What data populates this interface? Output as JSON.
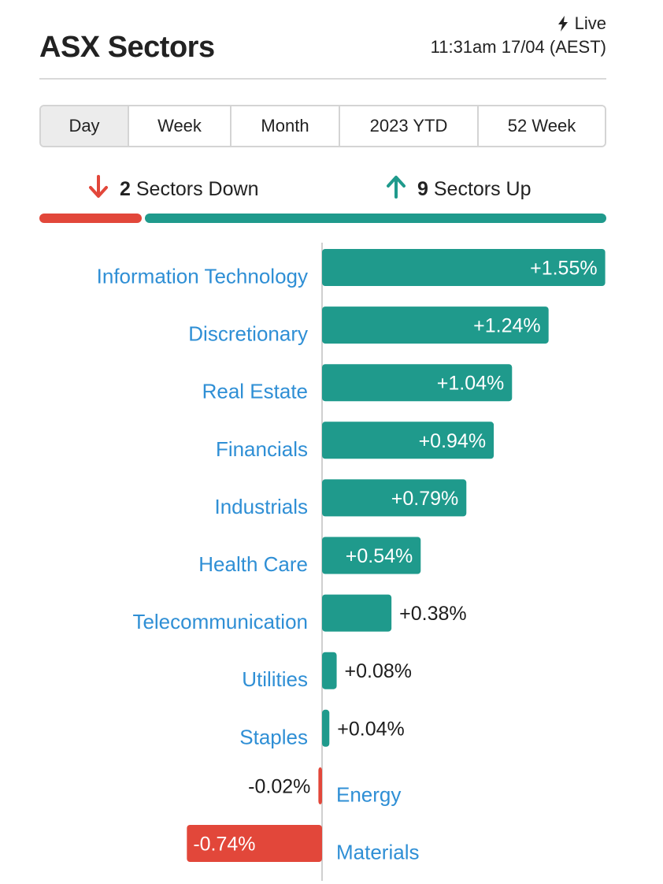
{
  "header": {
    "title": "ASX Sectors",
    "live_label": "Live",
    "timestamp": "11:31am 17/04 (AEST)"
  },
  "tabs": [
    {
      "label": "Day",
      "active": true
    },
    {
      "label": "Week",
      "active": false
    },
    {
      "label": "Month",
      "active": false
    },
    {
      "label": "2023 YTD",
      "active": false
    },
    {
      "label": "52 Week",
      "active": false
    }
  ],
  "summary": {
    "down_count": "2",
    "down_label": "Sectors Down",
    "up_count": "9",
    "up_label": "Sectors Up"
  },
  "colors": {
    "up": "#1f9a8c",
    "down": "#e2473a",
    "label": "#2f8fd5"
  },
  "chart_data": {
    "type": "bar",
    "orientation": "horizontal",
    "value_unit": "%",
    "categories": [
      "Information Technology",
      "Discretionary",
      "Real Estate",
      "Financials",
      "Industrials",
      "Health Care",
      "Telecommunication",
      "Utilities",
      "Staples",
      "Energy",
      "Materials"
    ],
    "values": [
      1.55,
      1.24,
      1.04,
      0.94,
      0.79,
      0.54,
      0.38,
      0.08,
      0.04,
      -0.02,
      -0.74
    ],
    "value_labels": [
      "+1.55%",
      "+1.24%",
      "+1.04%",
      "+0.94%",
      "+0.79%",
      "+0.54%",
      "+0.38%",
      "+0.08%",
      "+0.04%",
      "-0.02%",
      "-0.74%"
    ],
    "xlim": [
      -0.74,
      1.55
    ]
  }
}
